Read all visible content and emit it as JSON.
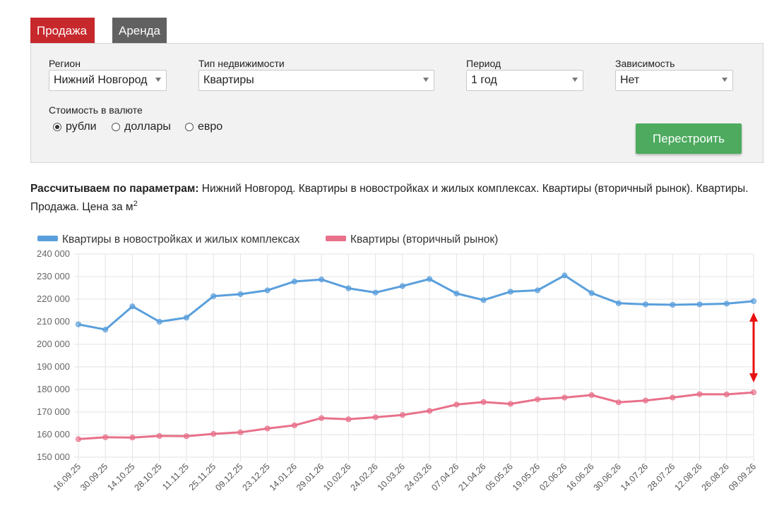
{
  "tabs": [
    {
      "label": "Продажа",
      "active": true
    },
    {
      "label": "Аренда",
      "active": false
    }
  ],
  "filters": {
    "region_label": "Регион",
    "region_value": "Нижний Новгород",
    "type_label": "Тип недвижимости",
    "type_value": "Квартиры",
    "period_label": "Период",
    "period_value": "1 год",
    "dependency_label": "Зависимость",
    "dependency_value": "Нет",
    "currency_label": "Стоимость в валюте",
    "currency_options": [
      {
        "label": "рубли",
        "selected": true
      },
      {
        "label": "доллары",
        "selected": false
      },
      {
        "label": "евро",
        "selected": false
      }
    ],
    "rebuild_button": "Перестроить"
  },
  "description": {
    "bold": "Рассчитываем по параметрам:",
    "text": " Нижний Новгород. Квартиры в новостройках и жилых комплексах. Квартиры (вторичный рынок). Квартиры. Продажа. Цена за м",
    "sup": "2"
  },
  "colors": {
    "sale_tab": "#c7282c",
    "rent_tab": "#616161",
    "button": "#4daa5f",
    "series_new": "#5a9fdc",
    "series_secondary": "#e8718a",
    "arrow": "#e81010"
  },
  "chart_data": {
    "type": "line",
    "x": [
      "16.09.25",
      "30.09.25",
      "14.10.25",
      "28.10.25",
      "11.11.25",
      "25.11.25",
      "09.12.25",
      "23.12.25",
      "14.01.26",
      "29.01.26",
      "10.02.26",
      "24.02.26",
      "10.03.26",
      "24.03.26",
      "07.04.26",
      "21.04.26",
      "05.05.26",
      "19.05.26",
      "02.06.26",
      "16.06.26",
      "30.06.26",
      "14.07.26",
      "28.07.26",
      "12.08.26",
      "26.08.26",
      "09.09.26"
    ],
    "y_ticks": [
      "240 000",
      "230 000",
      "220 000",
      "210 000",
      "200 000",
      "190 000",
      "180 000",
      "170 000",
      "160 000",
      "150 000"
    ],
    "ylim": [
      150000,
      240000
    ],
    "grid": true,
    "legend_position": "top-left",
    "series": [
      {
        "name": "Квартиры в новостройках и жилых комплексах",
        "color": "#5a9fdc",
        "values": [
          208800,
          206500,
          216800,
          210000,
          211800,
          221300,
          222200,
          223900,
          227800,
          228700,
          224800,
          222900,
          225800,
          228900,
          222500,
          219600,
          223300,
          223900,
          230500,
          222700,
          218200,
          217700,
          217500,
          217700,
          218000,
          219100
        ]
      },
      {
        "name": "Квартиры (вторичный рынок)",
        "color": "#e8718a",
        "values": [
          158000,
          158800,
          158700,
          159400,
          159300,
          160300,
          161000,
          162700,
          164100,
          167300,
          166800,
          167700,
          168700,
          170500,
          173300,
          174400,
          173600,
          175600,
          176400,
          177500,
          174300,
          175100,
          176400,
          177900,
          177800,
          178700
        ]
      }
    ]
  }
}
